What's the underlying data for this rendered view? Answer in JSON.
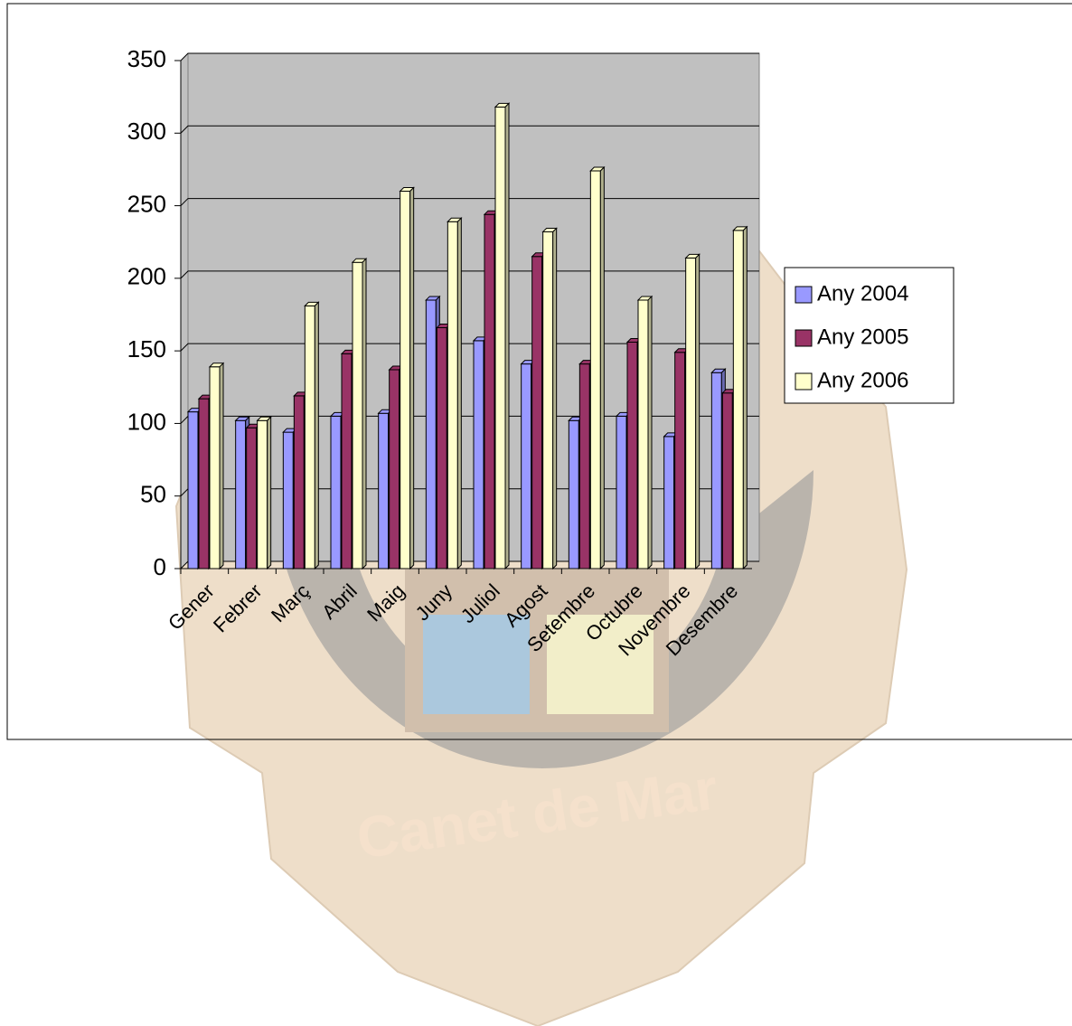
{
  "chart_data": {
    "type": "bar",
    "categories": [
      "Gener",
      "Febrer",
      "Març",
      "Abril",
      "Maig",
      "Juny",
      "Juliol",
      "Agost",
      "Setembre",
      "Octubre",
      "Novembre",
      "Desembre"
    ],
    "series": [
      {
        "name": "Any 2004",
        "color": "#9999ff",
        "values": [
          108,
          102,
          94,
          105,
          107,
          185,
          157,
          141,
          102,
          105,
          91,
          135
        ]
      },
      {
        "name": "Any 2005",
        "color": "#993366",
        "values": [
          117,
          97,
          119,
          148,
          137,
          166,
          244,
          215,
          141,
          156,
          149,
          121
        ]
      },
      {
        "name": "Any 2006",
        "color": "#ffffcc",
        "values": [
          139,
          102,
          181,
          211,
          260,
          239,
          318,
          232,
          274,
          185,
          214,
          233
        ]
      }
    ],
    "ylim": [
      0,
      350
    ],
    "yticks": [
      0,
      50,
      100,
      150,
      200,
      250,
      300,
      350
    ],
    "grid": true,
    "legend": "right",
    "watermark": "Canet de Mar"
  }
}
